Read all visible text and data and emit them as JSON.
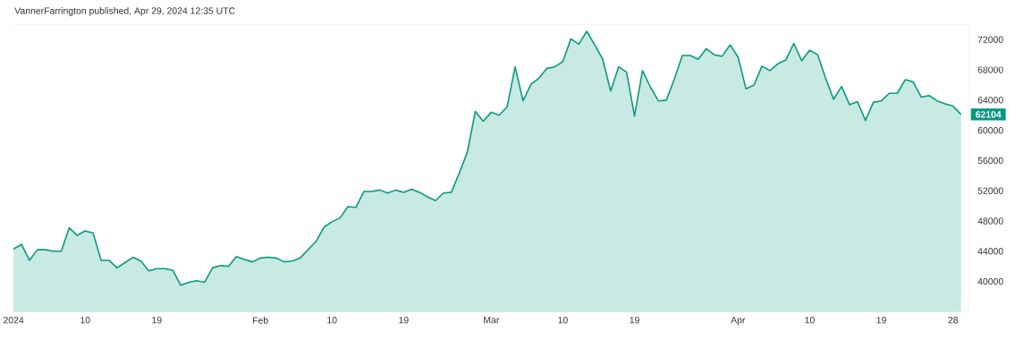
{
  "chart_data": {
    "type": "area",
    "title": "VannerFarrington published, Apr 29, 2024 12:35 UTC",
    "x": [
      "2024-01-01",
      "2024-01-02",
      "2024-01-03",
      "2024-01-04",
      "2024-01-05",
      "2024-01-06",
      "2024-01-07",
      "2024-01-08",
      "2024-01-09",
      "2024-01-10",
      "2024-01-11",
      "2024-01-12",
      "2024-01-13",
      "2024-01-14",
      "2024-01-15",
      "2024-01-16",
      "2024-01-17",
      "2024-01-18",
      "2024-01-19",
      "2024-01-20",
      "2024-01-21",
      "2024-01-22",
      "2024-01-23",
      "2024-01-24",
      "2024-01-25",
      "2024-01-26",
      "2024-01-27",
      "2024-01-28",
      "2024-01-29",
      "2024-01-30",
      "2024-01-31",
      "2024-02-01",
      "2024-02-02",
      "2024-02-03",
      "2024-02-04",
      "2024-02-05",
      "2024-02-06",
      "2024-02-07",
      "2024-02-08",
      "2024-02-09",
      "2024-02-10",
      "2024-02-11",
      "2024-02-12",
      "2024-02-13",
      "2024-02-14",
      "2024-02-15",
      "2024-02-16",
      "2024-02-17",
      "2024-02-18",
      "2024-02-19",
      "2024-02-20",
      "2024-02-21",
      "2024-02-22",
      "2024-02-23",
      "2024-02-24",
      "2024-02-25",
      "2024-02-26",
      "2024-02-27",
      "2024-02-28",
      "2024-02-29",
      "2024-03-01",
      "2024-03-02",
      "2024-03-03",
      "2024-03-04",
      "2024-03-05",
      "2024-03-06",
      "2024-03-07",
      "2024-03-08",
      "2024-03-09",
      "2024-03-10",
      "2024-03-11",
      "2024-03-12",
      "2024-03-13",
      "2024-03-14",
      "2024-03-15",
      "2024-03-16",
      "2024-03-17",
      "2024-03-18",
      "2024-03-19",
      "2024-03-20",
      "2024-03-21",
      "2024-03-22",
      "2024-03-23",
      "2024-03-24",
      "2024-03-25",
      "2024-03-26",
      "2024-03-27",
      "2024-03-28",
      "2024-03-29",
      "2024-03-30",
      "2024-03-31",
      "2024-04-01",
      "2024-04-02",
      "2024-04-03",
      "2024-04-04",
      "2024-04-05",
      "2024-04-06",
      "2024-04-07",
      "2024-04-08",
      "2024-04-09",
      "2024-04-10",
      "2024-04-11",
      "2024-04-12",
      "2024-04-13",
      "2024-04-14",
      "2024-04-15",
      "2024-04-16",
      "2024-04-17",
      "2024-04-18",
      "2024-04-19",
      "2024-04-20",
      "2024-04-21",
      "2024-04-22",
      "2024-04-23",
      "2024-04-24",
      "2024-04-25",
      "2024-04-26",
      "2024-04-27",
      "2024-04-28",
      "2024-04-29"
    ],
    "values": [
      44300,
      44900,
      42800,
      44200,
      44200,
      44000,
      44000,
      47100,
      46100,
      46700,
      46400,
      42800,
      42800,
      41800,
      42500,
      43200,
      42700,
      41400,
      41700,
      41700,
      41500,
      39500,
      39900,
      40100,
      39900,
      41800,
      42100,
      42000,
      43300,
      42900,
      42600,
      43100,
      43200,
      43100,
      42600,
      42700,
      43100,
      44200,
      45300,
      47200,
      47900,
      48400,
      49900,
      49800,
      51900,
      51900,
      52100,
      51700,
      52100,
      51800,
      52200,
      51800,
      51200,
      50700,
      51700,
      51800,
      54400,
      57100,
      62500,
      61200,
      62400,
      62000,
      63100,
      68400,
      63900,
      66100,
      66900,
      68200,
      68400,
      69100,
      72100,
      71400,
      73100,
      71300,
      69400,
      65200,
      68400,
      67700,
      61900,
      67900,
      65700,
      63900,
      64000,
      66800,
      69900,
      69900,
      69400,
      70800,
      70000,
      69800,
      71300,
      69700,
      65500,
      66000,
      68500,
      67900,
      68800,
      69300,
      71500,
      69200,
      70600,
      70000,
      66900,
      64100,
      65800,
      63400,
      63800,
      61300,
      63700,
      63900,
      64900,
      64900,
      66700,
      66400,
      64400,
      64600,
      63900,
      63500,
      63200,
      62104
    ],
    "color": "#089981",
    "xlim": [
      "2024-01-01",
      "2024-04-30"
    ],
    "xticks": [
      {
        "value": "2024-01-01",
        "label": "2024"
      },
      {
        "value": "2024-01-10",
        "label": "10"
      },
      {
        "value": "2024-01-19",
        "label": "19"
      },
      {
        "value": "2024-02-01",
        "label": "Feb"
      },
      {
        "value": "2024-02-10",
        "label": "10"
      },
      {
        "value": "2024-02-19",
        "label": "19"
      },
      {
        "value": "2024-03-01",
        "label": "Mar"
      },
      {
        "value": "2024-03-10",
        "label": "10"
      },
      {
        "value": "2024-03-19",
        "label": "19"
      },
      {
        "value": "2024-04-01",
        "label": "Apr"
      },
      {
        "value": "2024-04-10",
        "label": "10"
      },
      {
        "value": "2024-04-19",
        "label": "19"
      },
      {
        "value": "2024-04-28",
        "label": "28"
      }
    ],
    "ylim": [
      36000,
      74000
    ],
    "yticks": [
      40000,
      44000,
      48000,
      52000,
      56000,
      60000,
      64000,
      68000,
      72000
    ],
    "annotations": [
      {
        "text": "62104",
        "y": 62104
      }
    ]
  }
}
